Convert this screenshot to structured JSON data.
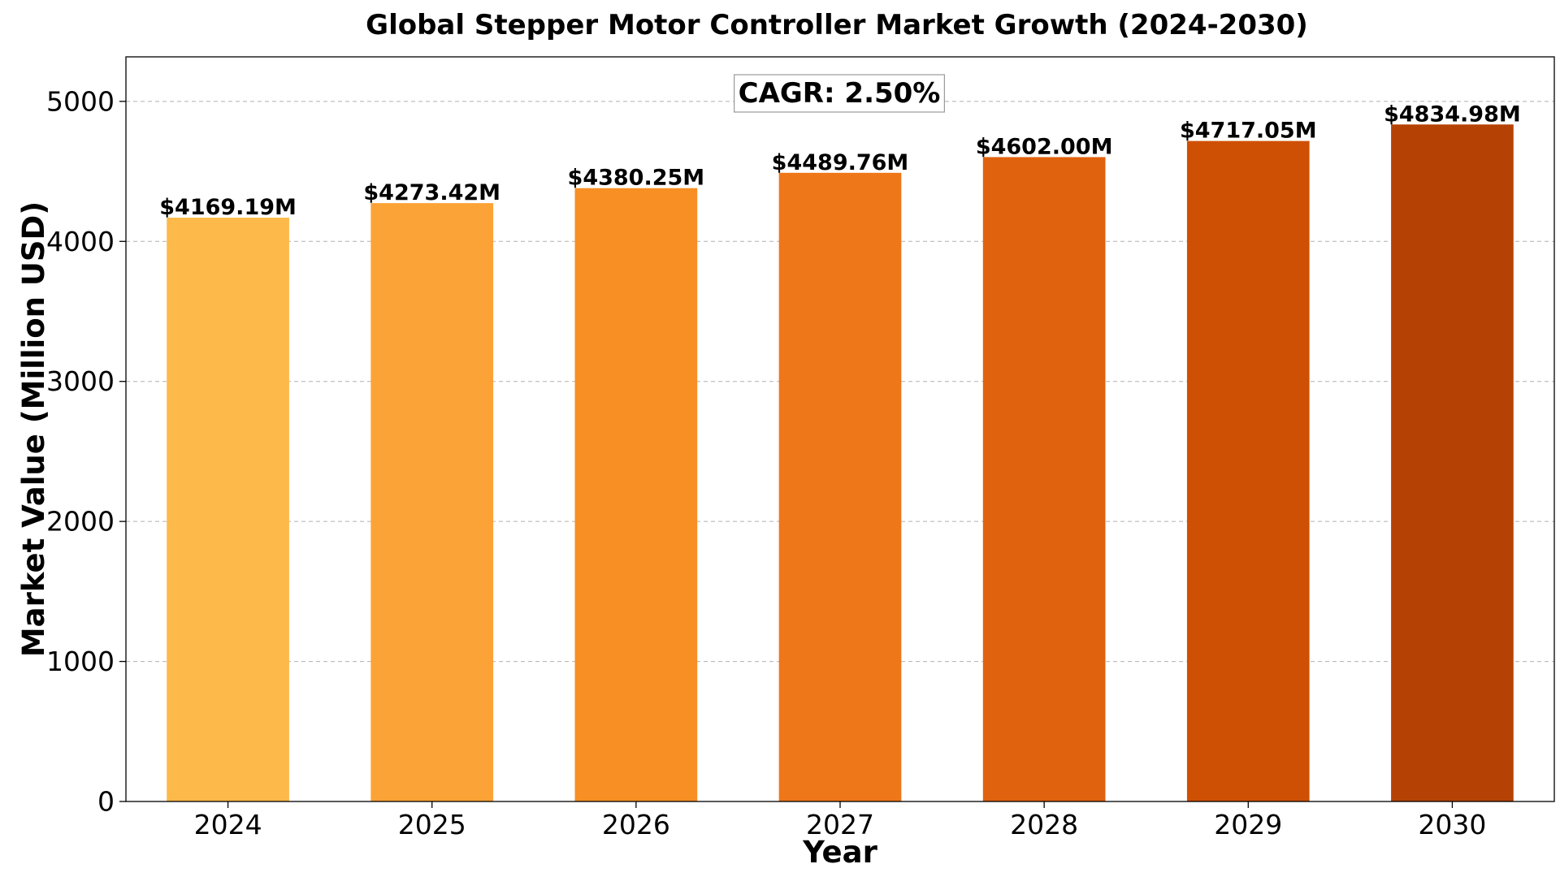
{
  "chart_data": {
    "type": "bar",
    "title": "Global Stepper Motor Controller Market Growth (2024-2030)",
    "xlabel": "Year",
    "ylabel": "Market Value (Million USD)",
    "categories": [
      "2024",
      "2025",
      "2026",
      "2027",
      "2028",
      "2029",
      "2030"
    ],
    "values": [
      4169.19,
      4273.42,
      4380.25,
      4489.76,
      4602.0,
      4717.05,
      4834.98
    ],
    "data_labels": [
      "$4169.19M",
      "$4273.42M",
      "$4380.25M",
      "$4489.76M",
      "$4602.00M",
      "$4717.05M",
      "$4834.98M"
    ],
    "bar_colors": [
      "#FDB94A",
      "#FBA336",
      "#F78F24",
      "#EE771A",
      "#E0620F",
      "#CE5004",
      "#B54204"
    ],
    "ylim": [
      0,
      5318
    ],
    "yticks": [
      0,
      1000,
      2000,
      3000,
      4000,
      5000
    ],
    "grid": "y-dashed",
    "annotation": "CAGR: 2.50%"
  }
}
